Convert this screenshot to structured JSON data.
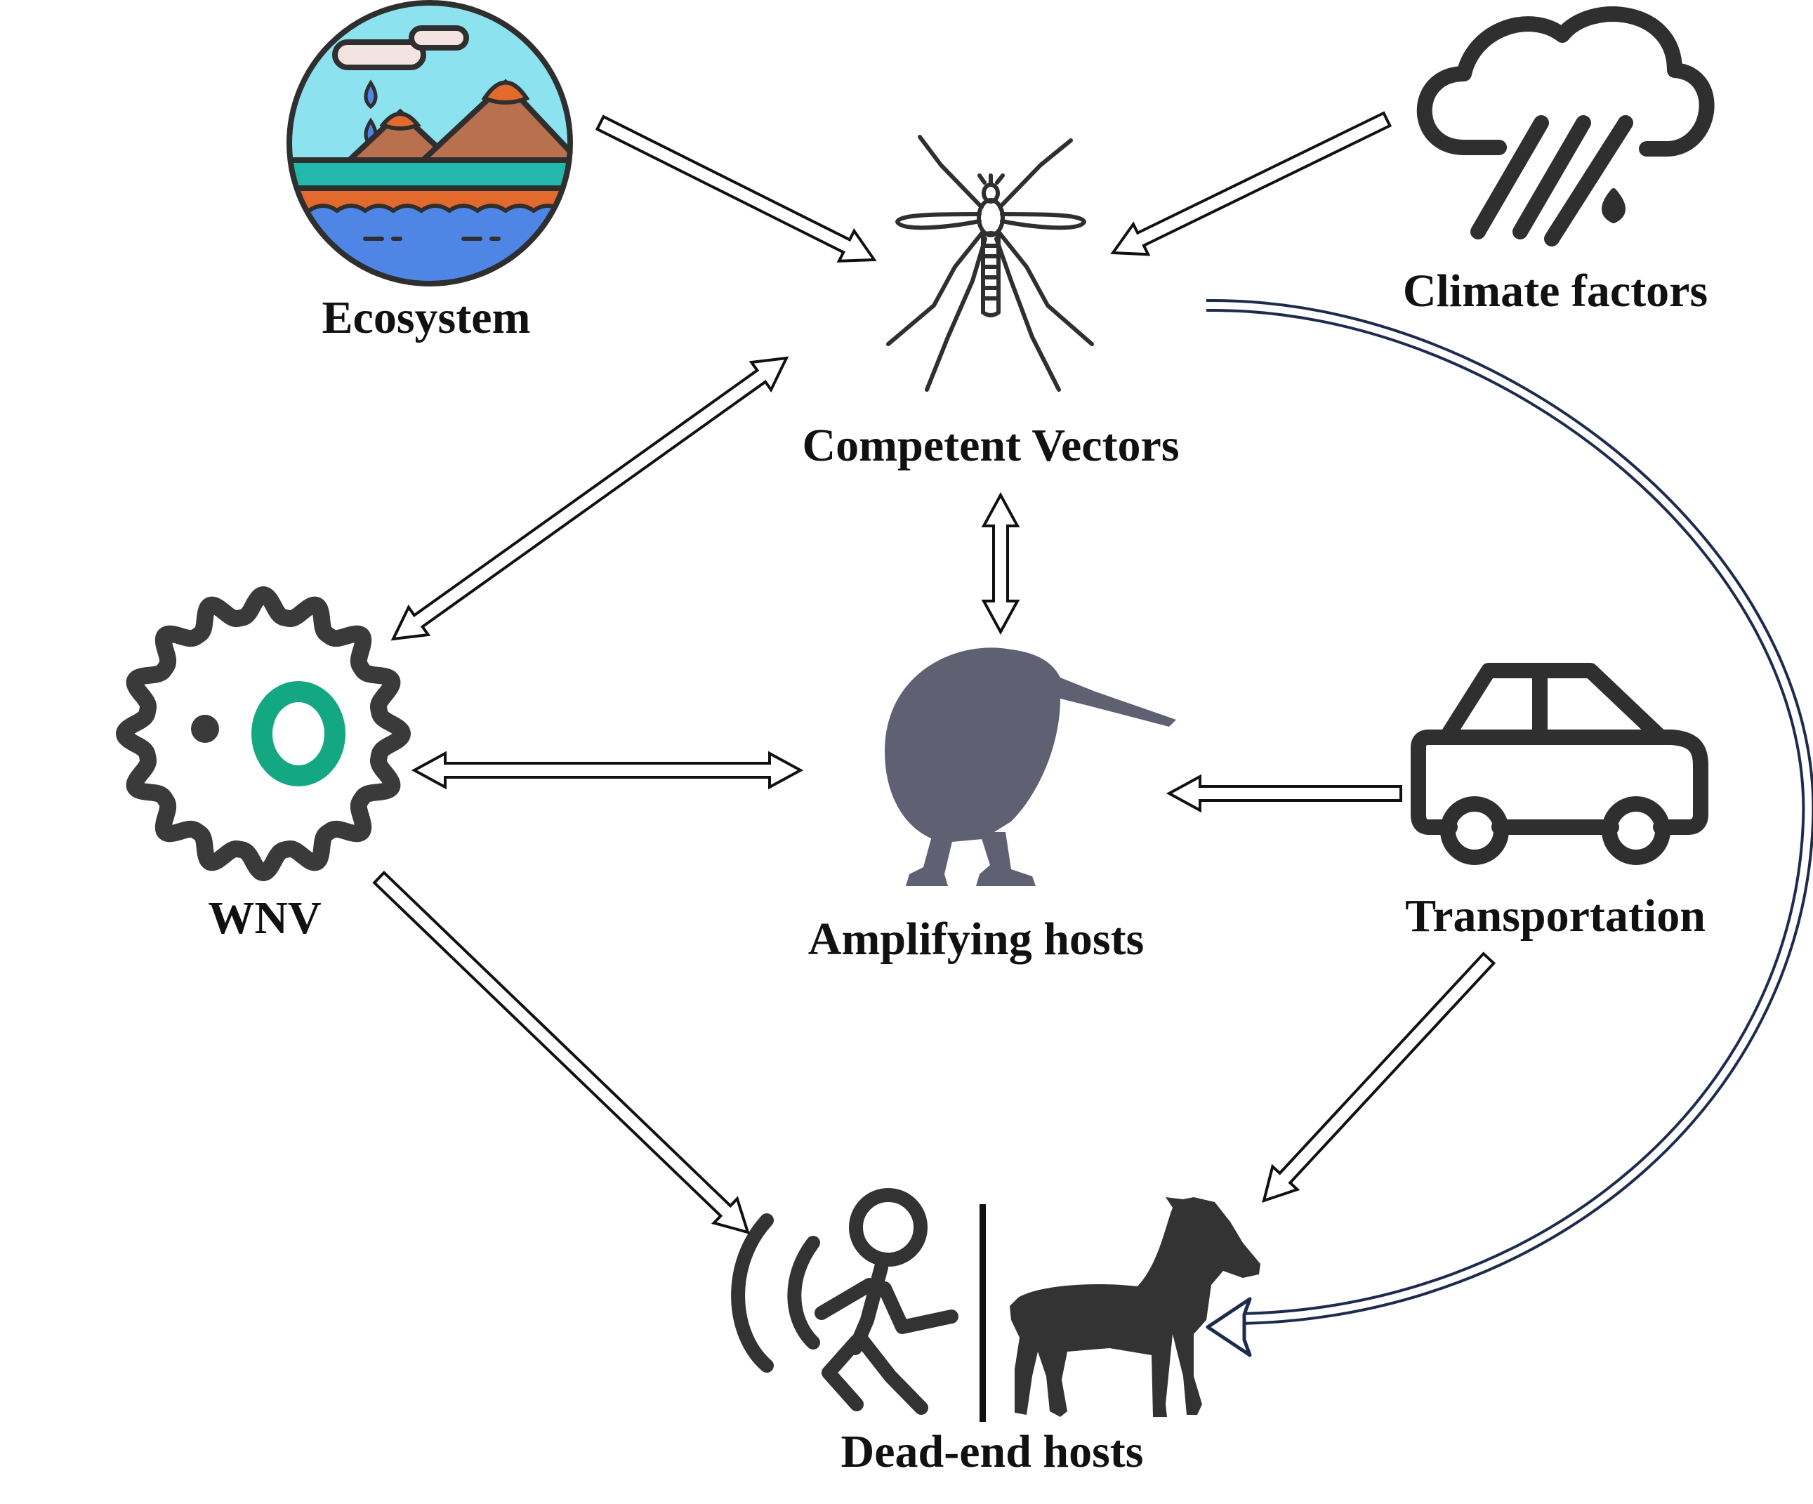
{
  "nodes": {
    "ecosystem": {
      "label": "Ecosystem",
      "icon": "landscape-icon"
    },
    "competent_vectors": {
      "label": "Competent Vectors",
      "icon": "mosquito-icon"
    },
    "climate_factors": {
      "label": "Climate factors",
      "icon": "rain-cloud-icon"
    },
    "wnv": {
      "label": "WNV",
      "icon": "virus-icon"
    },
    "amplifying_hosts": {
      "label": "Amplifying hosts",
      "icon": "kiwi-bird-icon"
    },
    "transportation": {
      "label": "Transportation",
      "icon": "car-icon"
    },
    "dead_end_hosts": {
      "label": "Dead-end hosts",
      "icon": "human-and-horse-icon"
    }
  },
  "edges": [
    {
      "from": "ecosystem",
      "to": "competent_vectors",
      "direction": "one-way"
    },
    {
      "from": "climate_factors",
      "to": "competent_vectors",
      "direction": "one-way"
    },
    {
      "from": "competent_vectors",
      "to": "wnv",
      "direction": "two-way"
    },
    {
      "from": "competent_vectors",
      "to": "amplifying_hosts",
      "direction": "two-way"
    },
    {
      "from": "wnv",
      "to": "amplifying_hosts",
      "direction": "two-way"
    },
    {
      "from": "transportation",
      "to": "amplifying_hosts",
      "direction": "one-way"
    },
    {
      "from": "wnv",
      "to": "dead_end_hosts",
      "direction": "one-way"
    },
    {
      "from": "transportation",
      "to": "dead_end_hosts",
      "direction": "one-way"
    },
    {
      "from": "competent_vectors",
      "to": "dead_end_hosts",
      "direction": "one-way",
      "style": "curved"
    }
  ],
  "colors": {
    "text": "#111111",
    "icon_dark": "#3a3a3a",
    "kiwi": "#5f6072",
    "virus_ring": "#14a882",
    "curve": "#1d2b4f",
    "sky": "#8ce3ef",
    "mountain": "#b8704e",
    "water": "#4f86e6",
    "teal_band": "#22b8ac",
    "orange_band": "#e26a2c"
  }
}
